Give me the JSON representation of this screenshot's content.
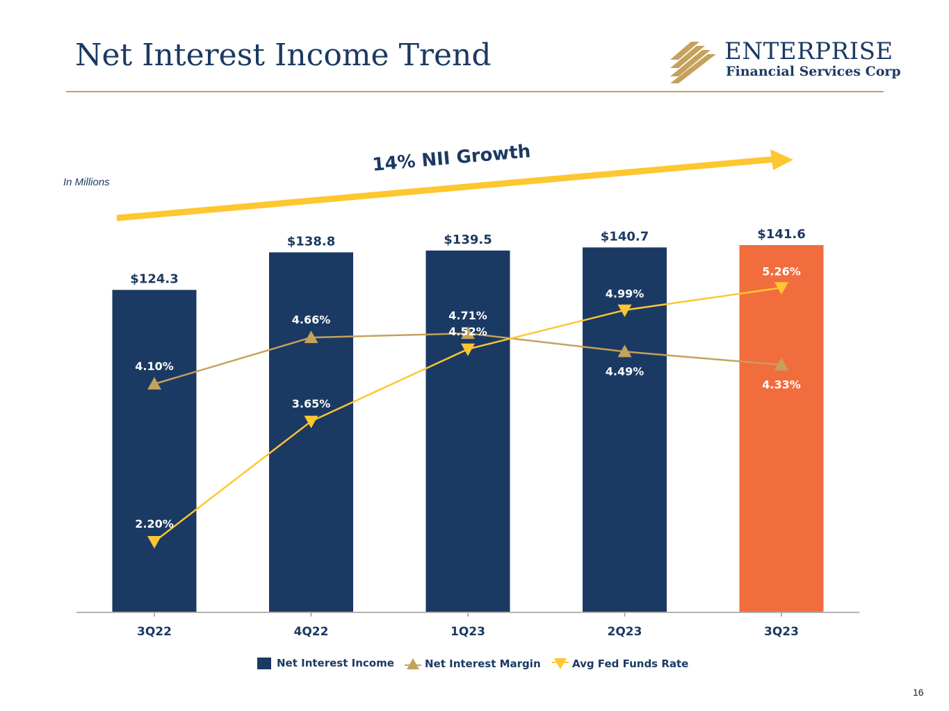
{
  "slide": {
    "title": "Net Interest Income Trend",
    "units_note": "In Millions",
    "page_number": "16"
  },
  "logo": {
    "name": "ENTERPRISE",
    "subtitle": "Financial Services Corp"
  },
  "colors": {
    "navy": "#1b3a63",
    "orange": "#f26d3d",
    "gold": "#c6a15b",
    "yellow": "#fec630"
  },
  "chart_data": {
    "type": "bar",
    "categories": [
      "3Q22",
      "4Q22",
      "1Q23",
      "2Q23",
      "3Q23"
    ],
    "series": [
      {
        "name": "Net Interest Income",
        "kind": "bar",
        "values": [
          124.3,
          138.8,
          139.5,
          140.7,
          141.6
        ],
        "labels": [
          "$124.3",
          "$138.8",
          "$139.5",
          "$140.7",
          "$141.6"
        ],
        "highlight_index": 4
      },
      {
        "name": "Net Interest Margin",
        "kind": "line",
        "values": [
          4.1,
          4.66,
          4.71,
          4.49,
          4.33
        ],
        "labels": [
          "4.10%",
          "4.66%",
          "4.71%",
          "4.49%",
          "4.33%"
        ]
      },
      {
        "name": "Avg Fed Funds Rate",
        "kind": "line",
        "values": [
          2.2,
          3.65,
          4.52,
          4.99,
          5.26
        ],
        "labels": [
          "2.20%",
          "3.65%",
          "4.52%",
          "4.99%",
          "5.26%"
        ]
      }
    ],
    "annotation": "14% NII Growth",
    "ylim_bars": [
      0,
      141.6
    ],
    "legend_position": "bottom"
  }
}
